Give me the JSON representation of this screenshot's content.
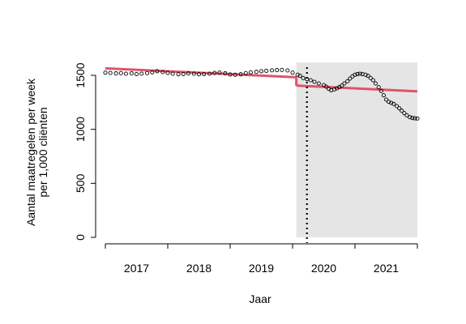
{
  "chart_data": {
    "type": "line",
    "xlabel": "Jaar",
    "ylabel_line1": "Aantal maatregelen per week",
    "ylabel_line2": "per 1,000 cliënten",
    "x_tick_labels": [
      "2017",
      "2018",
      "2019",
      "2020",
      "2021"
    ],
    "y_ticks": [
      0,
      500,
      1000,
      1500
    ],
    "xlim": [
      2016.5,
      2021.75
    ],
    "ylim": [
      0,
      1600
    ],
    "shaded_region": {
      "from": 2019.56,
      "to": 2021.5,
      "color": "#e5e5e5"
    },
    "vline": {
      "x": 2019.73,
      "style": "dotted",
      "color": "#000000"
    },
    "colors": {
      "observed": "#000000",
      "trend": "#df536b"
    },
    "series": [
      {
        "role": "observed",
        "style": "points",
        "points": [
          [
            2016.5,
            1525
          ],
          [
            2016.58,
            1522
          ],
          [
            2016.67,
            1518
          ],
          [
            2016.75,
            1520
          ],
          [
            2016.83,
            1515
          ],
          [
            2016.92,
            1518
          ],
          [
            2017.0,
            1512
          ],
          [
            2017.08,
            1515
          ],
          [
            2017.17,
            1520
          ],
          [
            2017.25,
            1528
          ],
          [
            2017.33,
            1538
          ],
          [
            2017.42,
            1530
          ],
          [
            2017.5,
            1522
          ],
          [
            2017.58,
            1515
          ],
          [
            2017.67,
            1510
          ],
          [
            2017.75,
            1512
          ],
          [
            2017.83,
            1518
          ],
          [
            2017.92,
            1515
          ],
          [
            2018.0,
            1510
          ],
          [
            2018.08,
            1512
          ],
          [
            2018.17,
            1515
          ],
          [
            2018.25,
            1522
          ],
          [
            2018.33,
            1525
          ],
          [
            2018.42,
            1518
          ],
          [
            2018.5,
            1508
          ],
          [
            2018.58,
            1505
          ],
          [
            2018.67,
            1510
          ],
          [
            2018.75,
            1520
          ],
          [
            2018.83,
            1528
          ],
          [
            2018.92,
            1532
          ],
          [
            2019.0,
            1538
          ],
          [
            2019.08,
            1542
          ],
          [
            2019.17,
            1546
          ],
          [
            2019.25,
            1548
          ],
          [
            2019.33,
            1550
          ],
          [
            2019.42,
            1545
          ],
          [
            2019.5,
            1525
          ],
          [
            2019.58,
            1505
          ],
          [
            2019.62,
            1495
          ],
          [
            2019.67,
            1475
          ],
          [
            2019.73,
            1465
          ],
          [
            2019.79,
            1455
          ],
          [
            2019.85,
            1440
          ],
          [
            2019.92,
            1425
          ],
          [
            2020.0,
            1410
          ],
          [
            2020.04,
            1395
          ],
          [
            2020.08,
            1375
          ],
          [
            2020.12,
            1362
          ],
          [
            2020.17,
            1370
          ],
          [
            2020.21,
            1380
          ],
          [
            2020.25,
            1392
          ],
          [
            2020.29,
            1405
          ],
          [
            2020.33,
            1425
          ],
          [
            2020.38,
            1445
          ],
          [
            2020.42,
            1470
          ],
          [
            2020.46,
            1490
          ],
          [
            2020.5,
            1505
          ],
          [
            2020.54,
            1512
          ],
          [
            2020.58,
            1515
          ],
          [
            2020.62,
            1512
          ],
          [
            2020.67,
            1505
          ],
          [
            2020.71,
            1495
          ],
          [
            2020.75,
            1475
          ],
          [
            2020.79,
            1455
          ],
          [
            2020.83,
            1425
          ],
          [
            2020.88,
            1390
          ],
          [
            2020.92,
            1355
          ],
          [
            2020.96,
            1315
          ],
          [
            2021.0,
            1275
          ],
          [
            2021.04,
            1255
          ],
          [
            2021.08,
            1245
          ],
          [
            2021.12,
            1235
          ],
          [
            2021.17,
            1215
          ],
          [
            2021.21,
            1195
          ],
          [
            2021.25,
            1172
          ],
          [
            2021.29,
            1150
          ],
          [
            2021.33,
            1130
          ],
          [
            2021.38,
            1112
          ],
          [
            2021.42,
            1105
          ],
          [
            2021.46,
            1102
          ],
          [
            2021.5,
            1100
          ]
        ]
      },
      {
        "role": "trend",
        "style": "line",
        "segments": [
          [
            [
              2016.5,
              1565
            ],
            [
              2019.56,
              1482
            ]
          ],
          [
            [
              2019.56,
              1405
            ],
            [
              2021.5,
              1352
            ]
          ]
        ]
      }
    ]
  }
}
